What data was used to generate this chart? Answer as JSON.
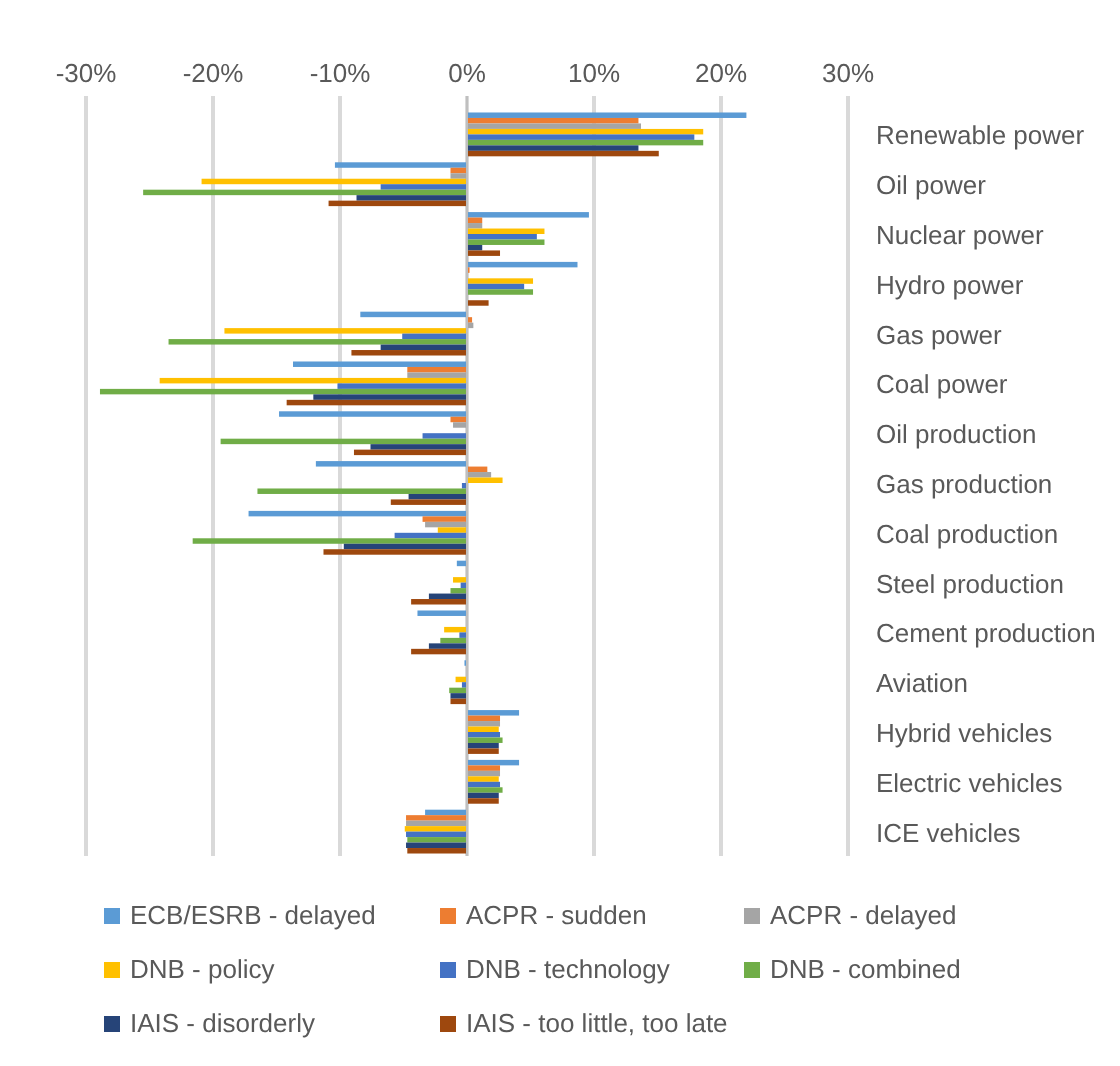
{
  "chart_data": {
    "type": "bar",
    "orientation": "horizontal",
    "categories": [
      "Renewable power",
      "Oil power",
      "Nuclear power",
      "Hydro power",
      "Gas power",
      "Coal power",
      "Oil production",
      "Gas production",
      "Coal production",
      "Steel production",
      "Cement production",
      "Aviation",
      "Hybrid vehicles",
      "Electric vehicles",
      "ICE vehicles"
    ],
    "series": [
      {
        "name": "ECB/ESRB - delayed",
        "color": "#5b9bd5",
        "values": [
          22.0,
          -10.4,
          9.6,
          8.7,
          -8.4,
          -13.7,
          -14.8,
          -11.9,
          -17.2,
          -0.8,
          -3.9,
          -0.2,
          4.1,
          4.1,
          -3.3
        ]
      },
      {
        "name": "ACPR - sudden",
        "color": "#ed7d31",
        "values": [
          13.5,
          -1.3,
          1.2,
          0.2,
          0.4,
          -4.7,
          -1.3,
          1.6,
          -3.5,
          0,
          0,
          0,
          2.6,
          2.6,
          -4.8
        ]
      },
      {
        "name": "ACPR - delayed",
        "color": "#a5a5a5",
        "values": [
          13.7,
          -1.3,
          1.2,
          null,
          0.5,
          -4.7,
          -1.1,
          1.9,
          -3.3,
          0,
          0,
          0,
          2.6,
          2.6,
          -4.8
        ]
      },
      {
        "name": "DNB - policy",
        "color": "#ffc000",
        "values": [
          18.6,
          -20.9,
          6.1,
          5.2,
          -19.1,
          -24.2,
          0,
          2.8,
          -2.3,
          -1.1,
          -1.8,
          -0.9,
          2.5,
          2.5,
          -4.9
        ]
      },
      {
        "name": "DNB - technology",
        "color": "#4472c4",
        "values": [
          17.9,
          -6.8,
          5.5,
          4.5,
          -5.1,
          -10.2,
          -3.5,
          -0.4,
          -5.7,
          -0.5,
          -0.6,
          -0.4,
          2.6,
          2.6,
          -4.8
        ]
      },
      {
        "name": "DNB - combined",
        "color": "#70ad47",
        "values": [
          18.6,
          -25.5,
          6.1,
          5.2,
          -23.5,
          -28.9,
          -19.4,
          -16.5,
          -21.6,
          -1.3,
          -2.1,
          -1.4,
          2.8,
          2.8,
          -4.7
        ]
      },
      {
        "name": "IAIS - disorderly",
        "color": "#264478",
        "values": [
          13.5,
          -8.7,
          1.2,
          0,
          -6.8,
          -12.1,
          -7.6,
          -4.6,
          -9.7,
          -3.0,
          -3.0,
          -1.3,
          2.5,
          2.5,
          -4.8
        ]
      },
      {
        "name": "IAIS - too little, too late",
        "color": "#9e480e",
        "values": [
          15.1,
          -10.9,
          2.6,
          1.7,
          -9.1,
          -14.2,
          -8.9,
          -6.0,
          -11.3,
          -4.4,
          -4.4,
          -1.3,
          2.5,
          2.5,
          -4.7
        ]
      }
    ],
    "xlim": [
      -30,
      30
    ],
    "xticks": [
      {
        "value": -30,
        "label": "-30%"
      },
      {
        "value": -20,
        "label": "-20%"
      },
      {
        "value": -10,
        "label": "-10%"
      },
      {
        "value": 0,
        "label": "0%"
      },
      {
        "value": 10,
        "label": "10%"
      },
      {
        "value": 20,
        "label": "20%"
      },
      {
        "value": 30,
        "label": "30%"
      }
    ],
    "grid": "x",
    "legend": "bottom"
  }
}
